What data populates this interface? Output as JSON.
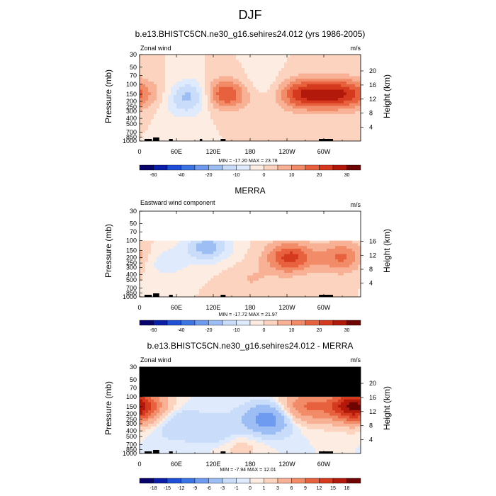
{
  "figure": {
    "title": "DJF"
  },
  "colors": {
    "panel_top_and_middle_scale": [
      "#08046c",
      "#0b1ea8",
      "#1e4fd6",
      "#3b74e4",
      "#6e9bef",
      "#9cbef5",
      "#c9dcfa",
      "#dfeafd",
      "#fdece2",
      "#fcd3bf",
      "#f8b195",
      "#f28c68",
      "#e8613f",
      "#d63a1e",
      "#b3190a",
      "#6e0503"
    ],
    "panel_bottom_scale": [
      "#08046c",
      "#0b1ea8",
      "#1e4fd6",
      "#3b74e4",
      "#6e9bef",
      "#9cbef5",
      "#c9dcfa",
      "#dfeafd",
      "#fdece2",
      "#fcd3bf",
      "#f8b195",
      "#f28c68",
      "#e8613f",
      "#d63a1e",
      "#b3190a",
      "#6e0503"
    ],
    "topography": "#000000",
    "missing": "#000000"
  },
  "chart_data": [
    {
      "type": "heatmap",
      "title": "b.e13.BHISTC5CN.ne30_g16.sehires24.012 (yrs 1986-2005)",
      "left_label": "Zonal wind",
      "right_label": "m/s",
      "xlabel": "",
      "ylabel": "Pressure (mb)",
      "y2label": "Height (km)",
      "x_ticks": [
        "0",
        "60E",
        "120E",
        "180",
        "120W",
        "60W"
      ],
      "y_ticks": [
        "30",
        "50",
        "70",
        "100",
        "150",
        "200",
        "250",
        "300",
        "400",
        "500",
        "700",
        "850",
        "1000"
      ],
      "y2_ticks": [
        "4",
        "8",
        "12",
        "16",
        "20"
      ],
      "minmax_text": "MIN = -17.20  MAX = 23.78",
      "colorbar_labels": [
        "-60",
        "-40",
        "-20",
        "-10",
        "0",
        "10",
        "20",
        "30"
      ],
      "levels": [
        -60,
        -50,
        -40,
        -30,
        -20,
        -15,
        -10,
        -5,
        0,
        5,
        10,
        15,
        20,
        25,
        30
      ],
      "features": [
        {
          "lon": 135,
          "p": 150,
          "value": 23.78
        },
        {
          "lon": 265,
          "p": 150,
          "value": 23.0
        },
        {
          "lon": 320,
          "p": 150,
          "value": 22.0
        },
        {
          "lon": 5,
          "p": 150,
          "value": 9.0
        },
        {
          "lon": 90,
          "p": 150,
          "value": -17.2
        },
        {
          "lon": 70,
          "p": 250,
          "value": -6.0
        },
        {
          "lon": 200,
          "p": 100,
          "value": -4.0
        }
      ],
      "topography_lons": [
        [
          8,
          20
        ],
        [
          22,
          32
        ],
        [
          48,
          54
        ],
        [
          98,
          102
        ],
        [
          132,
          140
        ],
        [
          292,
          315
        ]
      ],
      "missing_above_hPa": null
    },
    {
      "type": "heatmap",
      "title": "MERRA",
      "left_label": "Eastward wind component",
      "right_label": "m/s",
      "xlabel": "",
      "ylabel": "Pressure (mb)",
      "y2label": "Height (km)",
      "x_ticks": [
        "0",
        "60E",
        "120E",
        "180",
        "120W",
        "60W"
      ],
      "y_ticks": [
        "30",
        "50",
        "70",
        "100",
        "150",
        "200",
        "250",
        "300",
        "400",
        "500",
        "700",
        "850",
        "1000"
      ],
      "y2_ticks": [
        "4",
        "8",
        "12",
        "16"
      ],
      "minmax_text": "MIN = -17.72  MAX = 21.97",
      "colorbar_labels": [
        "-60",
        "-40",
        "-20",
        "-10",
        "0",
        "10",
        "20",
        "30"
      ],
      "levels": [
        -60,
        -50,
        -40,
        -30,
        -20,
        -15,
        -10,
        -5,
        0,
        5,
        10,
        15,
        20,
        25,
        30
      ],
      "features": [
        {
          "lon": 245,
          "p": 200,
          "value": 21.97
        },
        {
          "lon": 330,
          "p": 200,
          "value": 16.0
        },
        {
          "lon": 110,
          "p": 130,
          "value": -17.72
        },
        {
          "lon": 40,
          "p": 250,
          "value": -8.0
        },
        {
          "lon": 180,
          "p": 500,
          "value": 5.0
        }
      ],
      "topography_lons": [
        [
          8,
          20
        ],
        [
          22,
          32
        ],
        [
          48,
          54
        ],
        [
          132,
          140
        ],
        [
          292,
          315
        ]
      ],
      "missing_above_hPa": 100
    },
    {
      "type": "heatmap",
      "title": "b.e13.BHISTC5CN.ne30_g16.sehires24.012 - MERRA",
      "left_label": "Zonal wind",
      "right_label": "m/s",
      "xlabel": "",
      "ylabel": "Pressure (mb)",
      "y2label": "Height (km)",
      "x_ticks": [
        "0",
        "60E",
        "120E",
        "180",
        "120W",
        "60W"
      ],
      "y_ticks": [
        "30",
        "50",
        "70",
        "100",
        "150",
        "200",
        "250",
        "300",
        "400",
        "500",
        "700",
        "850",
        "1000"
      ],
      "y2_ticks": [
        "4",
        "8",
        "12",
        "16",
        "20"
      ],
      "minmax_text": "MIN = -7.94  MAX = 12.01",
      "colorbar_labels": [
        "-18",
        "-15",
        "-12",
        "-9",
        "-6",
        "-3",
        "-1",
        "0",
        "1",
        "3",
        "6",
        "9",
        "12",
        "15",
        "18"
      ],
      "levels": [
        -18,
        -15,
        -12,
        -9,
        -6,
        -3,
        -1,
        0,
        1,
        3,
        6,
        9,
        12,
        15,
        18
      ],
      "features": [
        {
          "lon": 340,
          "p": 150,
          "value": 12.01
        },
        {
          "lon": 270,
          "p": 150,
          "value": 9.0
        },
        {
          "lon": 5,
          "p": 150,
          "value": 9.0
        },
        {
          "lon": 210,
          "p": 250,
          "value": -7.94
        },
        {
          "lon": 60,
          "p": 300,
          "value": -3.0
        },
        {
          "lon": 130,
          "p": 400,
          "value": -3.0
        },
        {
          "lon": 160,
          "p": 700,
          "value": 2.0
        }
      ],
      "topography_lons": [
        [
          8,
          20
        ],
        [
          22,
          32
        ],
        [
          48,
          54
        ],
        [
          132,
          140
        ],
        [
          292,
          315
        ]
      ],
      "missing_above_hPa": 100
    }
  ]
}
